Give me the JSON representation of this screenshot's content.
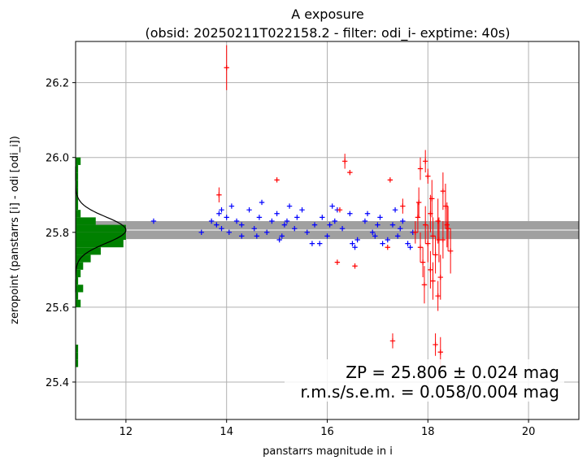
{
  "chart_data": {
    "type": "scatter",
    "title": "A exposure",
    "subtitle": "(obsid: 20250211T022158.2 - filter: odi_i- exptime: 40s)",
    "xlabel": "panstarrs magnitude in i",
    "ylabel": "zeropoint (panstarrs [i] - odi [odi_i])",
    "xlim": [
      11.0,
      21.0
    ],
    "ylim": [
      25.3,
      26.31
    ],
    "xticks": [
      "12",
      "14",
      "16",
      "18",
      "20"
    ],
    "yticks": [
      "25.4",
      "25.6",
      "25.8",
      "26.0",
      "26.2"
    ],
    "grid": true,
    "colors": {
      "used": "#0000ff",
      "rejected": "#ff0000",
      "histogram": "#008000",
      "gauss": "#000000",
      "band": "#a0a0a0",
      "zp_line": "#ffffff",
      "grid": "#b0b0b0"
    },
    "zp_band": {
      "center": 25.806,
      "halfwidth": 0.024
    },
    "annotation": {
      "line1": "ZP = 25.806 ± 0.024 mag",
      "line2": "r.m.s/s.e.m. = 0.058/0.004 mag"
    },
    "series": [
      {
        "marker": "plus",
        "x": [
          12.55,
          13.5,
          13.7,
          13.8,
          13.85,
          13.9,
          14.0,
          14.05,
          14.2,
          14.3,
          14.45,
          14.55,
          14.65,
          14.8,
          14.9,
          15.0,
          15.1,
          15.2,
          15.35,
          15.5,
          15.6,
          15.75,
          15.9,
          16.0,
          16.15,
          16.3,
          16.45,
          16.6,
          16.75,
          16.9,
          17.05,
          17.2,
          17.3,
          17.4,
          17.5,
          17.6,
          13.9,
          14.3,
          14.7,
          15.05,
          15.4,
          15.85,
          16.2,
          16.55,
          16.8,
          17.1,
          17.45,
          17.65,
          14.1,
          14.6,
          15.25,
          15.7,
          16.1,
          16.5,
          16.95,
          17.35,
          17.7,
          15.15,
          16.05,
          17.0
        ],
        "y": [
          25.83,
          25.8,
          25.83,
          25.82,
          25.85,
          25.81,
          25.84,
          25.8,
          25.83,
          25.82,
          25.86,
          25.81,
          25.84,
          25.8,
          25.83,
          25.85,
          25.79,
          25.83,
          25.81,
          25.86,
          25.8,
          25.82,
          25.84,
          25.79,
          25.83,
          25.81,
          25.85,
          25.78,
          25.83,
          25.8,
          25.84,
          25.78,
          25.82,
          25.79,
          25.83,
          25.77,
          25.86,
          25.79,
          25.88,
          25.78,
          25.84,
          25.77,
          25.86,
          25.76,
          25.85,
          25.77,
          25.81,
          25.76,
          25.87,
          25.79,
          25.87,
          25.77,
          25.87,
          25.77,
          25.79,
          25.86,
          25.8,
          25.82,
          25.82,
          25.82
        ]
      },
      {
        "marker": "plus-errorbar",
        "x": [
          13.85,
          14.0,
          15.0,
          16.2,
          16.25,
          16.35,
          16.45,
          16.55,
          17.25,
          17.5,
          17.2,
          17.3,
          17.75,
          17.8,
          17.85,
          17.9,
          17.95,
          18.0,
          18.05,
          18.1,
          18.15,
          18.2,
          18.25,
          18.3,
          18.35,
          18.4,
          18.45,
          17.95,
          18.1,
          18.2,
          18.3,
          18.05,
          18.15,
          18.25,
          17.85,
          18.0,
          17.82,
          17.93,
          18.08,
          18.22,
          18.38
        ],
        "y": [
          25.9,
          26.24,
          25.94,
          25.72,
          25.86,
          25.99,
          25.96,
          25.71,
          25.94,
          25.87,
          25.76,
          25.51,
          25.8,
          25.84,
          25.76,
          25.72,
          25.82,
          25.77,
          25.85,
          25.79,
          25.74,
          25.83,
          25.68,
          25.78,
          25.87,
          25.81,
          25.75,
          25.99,
          25.67,
          25.63,
          25.91,
          25.7,
          25.5,
          25.48,
          25.97,
          25.95,
          25.88,
          25.66,
          25.89,
          25.78,
          25.82
        ],
        "yerr": [
          0.02,
          0.06,
          0.0,
          0.0,
          0.0,
          0.02,
          0.0,
          0.0,
          0.0,
          0.02,
          0.0,
          0.02,
          0.03,
          0.04,
          0.04,
          0.04,
          0.05,
          0.05,
          0.05,
          0.05,
          0.05,
          0.06,
          0.06,
          0.05,
          0.06,
          0.06,
          0.06,
          0.03,
          0.05,
          0.04,
          0.05,
          0.05,
          0.03,
          0.04,
          0.03,
          0.02,
          0.04,
          0.05,
          0.05,
          0.06,
          0.06
        ]
      }
    ],
    "histogram": {
      "bins_y": [
        25.44,
        25.46,
        25.48,
        25.6,
        25.62,
        25.64,
        25.66,
        25.68,
        25.7,
        25.72,
        25.74,
        25.76,
        25.78,
        25.8,
        25.82,
        25.84,
        25.86,
        25.88,
        25.9,
        25.92,
        25.94,
        25.96,
        25.98
      ],
      "bin_height": 0.02,
      "counts_x": [
        11.05,
        11.05,
        11.05,
        11.1,
        11.05,
        11.15,
        11.05,
        11.1,
        11.15,
        11.3,
        11.5,
        11.95,
        12.0,
        12.0,
        11.4,
        11.1,
        11.05,
        11.05,
        11.05,
        11.05,
        11.05,
        11.05,
        11.1
      ]
    }
  }
}
